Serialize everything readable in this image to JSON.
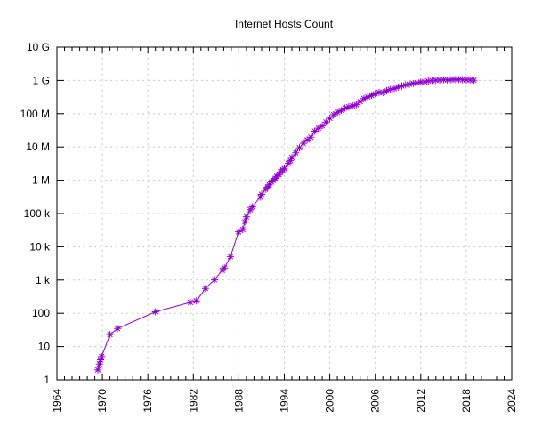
{
  "chart_data": {
    "type": "line",
    "title": "Internet Hosts Count",
    "xlabel": "",
    "ylabel": "",
    "grid": true,
    "legend": "none",
    "x_axis": {
      "min": 1964,
      "max": 2024,
      "major_tick_step": 6,
      "minor_tick_step": 1,
      "tick_labels": [
        "1964",
        "1970",
        "1976",
        "1982",
        "1988",
        "1994",
        "2000",
        "2006",
        "2012",
        "2018",
        "2024"
      ],
      "label_rotation_deg": 90
    },
    "y_axis": {
      "scale": "log10",
      "min": 1,
      "max": 10000000000,
      "tick_labels": [
        "1",
        "10",
        "100",
        "1 k",
        "10 k",
        "100 k",
        "1 M",
        "10 M",
        "100 M",
        "1 G",
        "10 G"
      ]
    },
    "series": [
      {
        "name": "Internet hosts",
        "color": "#9400d3",
        "marker": "asterisk",
        "points": [
          [
            1969.4,
            2
          ],
          [
            1969.6,
            3
          ],
          [
            1969.75,
            4
          ],
          [
            1969.9,
            5
          ],
          [
            1971.0,
            23
          ],
          [
            1972.0,
            35
          ],
          [
            1977.0,
            111
          ],
          [
            1981.6,
            213
          ],
          [
            1982.4,
            235
          ],
          [
            1983.6,
            562
          ],
          [
            1984.8,
            1024
          ],
          [
            1985.8,
            1961
          ],
          [
            1986.1,
            2308
          ],
          [
            1986.9,
            5089
          ],
          [
            1987.95,
            28174
          ],
          [
            1988.5,
            33000
          ],
          [
            1988.8,
            56000
          ],
          [
            1989.0,
            80000
          ],
          [
            1989.5,
            130000
          ],
          [
            1989.8,
            159000
          ],
          [
            1990.8,
            313000
          ],
          [
            1991.0,
            376000
          ],
          [
            1991.5,
            535000
          ],
          [
            1991.8,
            617000
          ],
          [
            1992.0,
            727000
          ],
          [
            1992.3,
            890000
          ],
          [
            1992.5,
            992000
          ],
          [
            1992.8,
            1136000
          ],
          [
            1993.0,
            1313000
          ],
          [
            1993.3,
            1486000
          ],
          [
            1993.5,
            1776000
          ],
          [
            1993.8,
            2056000
          ],
          [
            1994.0,
            2217000
          ],
          [
            1994.5,
            3212000
          ],
          [
            1994.8,
            3864000
          ],
          [
            1995.0,
            4852000
          ],
          [
            1995.5,
            6642000
          ],
          [
            1996.0,
            9472000
          ],
          [
            1996.5,
            12881000
          ],
          [
            1997.0,
            16146000
          ],
          [
            1997.5,
            19540000
          ],
          [
            1998.0,
            29670000
          ],
          [
            1998.5,
            36739000
          ],
          [
            1999.0,
            43230000
          ],
          [
            1999.5,
            56218000
          ],
          [
            2000.0,
            72398092
          ],
          [
            2000.5,
            93047785
          ],
          [
            2001.0,
            109574429
          ],
          [
            2001.5,
            125888197
          ],
          [
            2002.0,
            147344723
          ],
          [
            2002.5,
            162128493
          ],
          [
            2003.0,
            171638297
          ],
          [
            2003.5,
            186965053
          ],
          [
            2004.0,
            233101481
          ],
          [
            2004.5,
            285139107
          ],
          [
            2005.0,
            317646084
          ],
          [
            2005.5,
            353284187
          ],
          [
            2006.0,
            394991609
          ],
          [
            2006.5,
            439286364
          ],
          [
            2007.0,
            433193199
          ],
          [
            2007.5,
            489774269
          ],
          [
            2008.0,
            541677360
          ],
          [
            2008.5,
            570937778
          ],
          [
            2009.0,
            625226456
          ],
          [
            2009.5,
            681064561
          ],
          [
            2010.0,
            732740444
          ],
          [
            2010.5,
            768913036
          ],
          [
            2011.0,
            818374269
          ],
          [
            2011.5,
            849869781
          ],
          [
            2012.0,
            888239420
          ],
          [
            2012.5,
            908585739
          ],
          [
            2013.0,
            963518598
          ],
          [
            2013.5,
            996230757
          ],
          [
            2014.0,
            1010251829
          ],
          [
            2014.5,
            1028544414
          ],
          [
            2015.0,
            1048766623
          ],
          [
            2015.5,
            1033836029
          ],
          [
            2016.0,
            1048332198
          ],
          [
            2016.5,
            1062660523
          ],
          [
            2017.0,
            1061712290
          ],
          [
            2017.5,
            1057946926
          ],
          [
            2018.0,
            1042790756
          ],
          [
            2018.5,
            1028461731
          ],
          [
            2019.0,
            1012706608
          ]
        ]
      }
    ]
  }
}
